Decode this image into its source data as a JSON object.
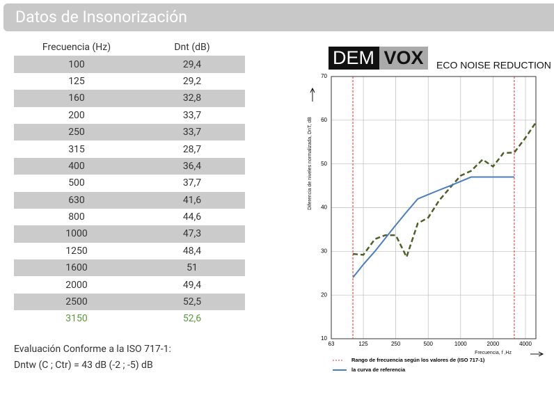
{
  "header": {
    "title": "Datos de Insonorización"
  },
  "table": {
    "columns": [
      "Frecuencia (Hz)",
      "Dnt (dB)"
    ],
    "rows": [
      [
        "100",
        "29,4"
      ],
      [
        "125",
        "29,2"
      ],
      [
        "160",
        "32,8"
      ],
      [
        "200",
        "33,7"
      ],
      [
        "250",
        "33,7"
      ],
      [
        "315",
        "28,7"
      ],
      [
        "400",
        "36,4"
      ],
      [
        "500",
        "37,7"
      ],
      [
        "630",
        "41,6"
      ],
      [
        "800",
        "44,6"
      ],
      [
        "1000",
        "47,3"
      ],
      [
        "1250",
        "48,4"
      ],
      [
        "1600",
        "51"
      ],
      [
        "2000",
        "49,4"
      ],
      [
        "2500",
        "52,5"
      ],
      [
        "3150",
        "52,6"
      ]
    ]
  },
  "evaluation": {
    "title": "Evaluación Conforme a la ISO 717-1:",
    "text": "Dntw (C ; Ctr) = 43 dB (-2 ; -5) dB"
  },
  "logo": {
    "left": "DEM",
    "right": "VOX",
    "tagline": "ECO NOISE REDUCTION"
  },
  "chart_data": {
    "type": "line",
    "x_label": "Frecuencia, f ,Hz",
    "y_label": "Diferencia de niveles normalizada, DnT, dB",
    "x": [
      100,
      125,
      160,
      200,
      250,
      315,
      400,
      500,
      630,
      800,
      1000,
      1250,
      1600,
      2000,
      2500,
      3150,
      4000,
      5000
    ],
    "series": [
      {
        "color": "#4e5e26",
        "dashed": true,
        "values": [
          29.4,
          29.2,
          32.8,
          33.7,
          33.7,
          28.7,
          36.4,
          37.7,
          41.6,
          44.6,
          47.3,
          48.4,
          51,
          49.4,
          52.5,
          52.6,
          56,
          59.5
        ]
      },
      {
        "name": "la curva de referencia",
        "color": "#4a7ec0",
        "dashed": false,
        "values": [
          24,
          27,
          30,
          33,
          36,
          39,
          42,
          43,
          44,
          45,
          46,
          47,
          47,
          47,
          47,
          47,
          null,
          null
        ]
      }
    ],
    "range": {
      "label": "Rango de frecuencia según los valores de (ISO 717-1)",
      "values": [
        100,
        3150
      ],
      "color": "#e03030"
    },
    "xlim": [
      63,
      5000
    ],
    "xticks": [
      63,
      125,
      250,
      500,
      1000,
      2000,
      4000
    ],
    "log_x": true,
    "ylim": [
      10,
      70
    ],
    "yticks": [
      10,
      20,
      30,
      40,
      50,
      60,
      70
    ],
    "grid": true
  }
}
